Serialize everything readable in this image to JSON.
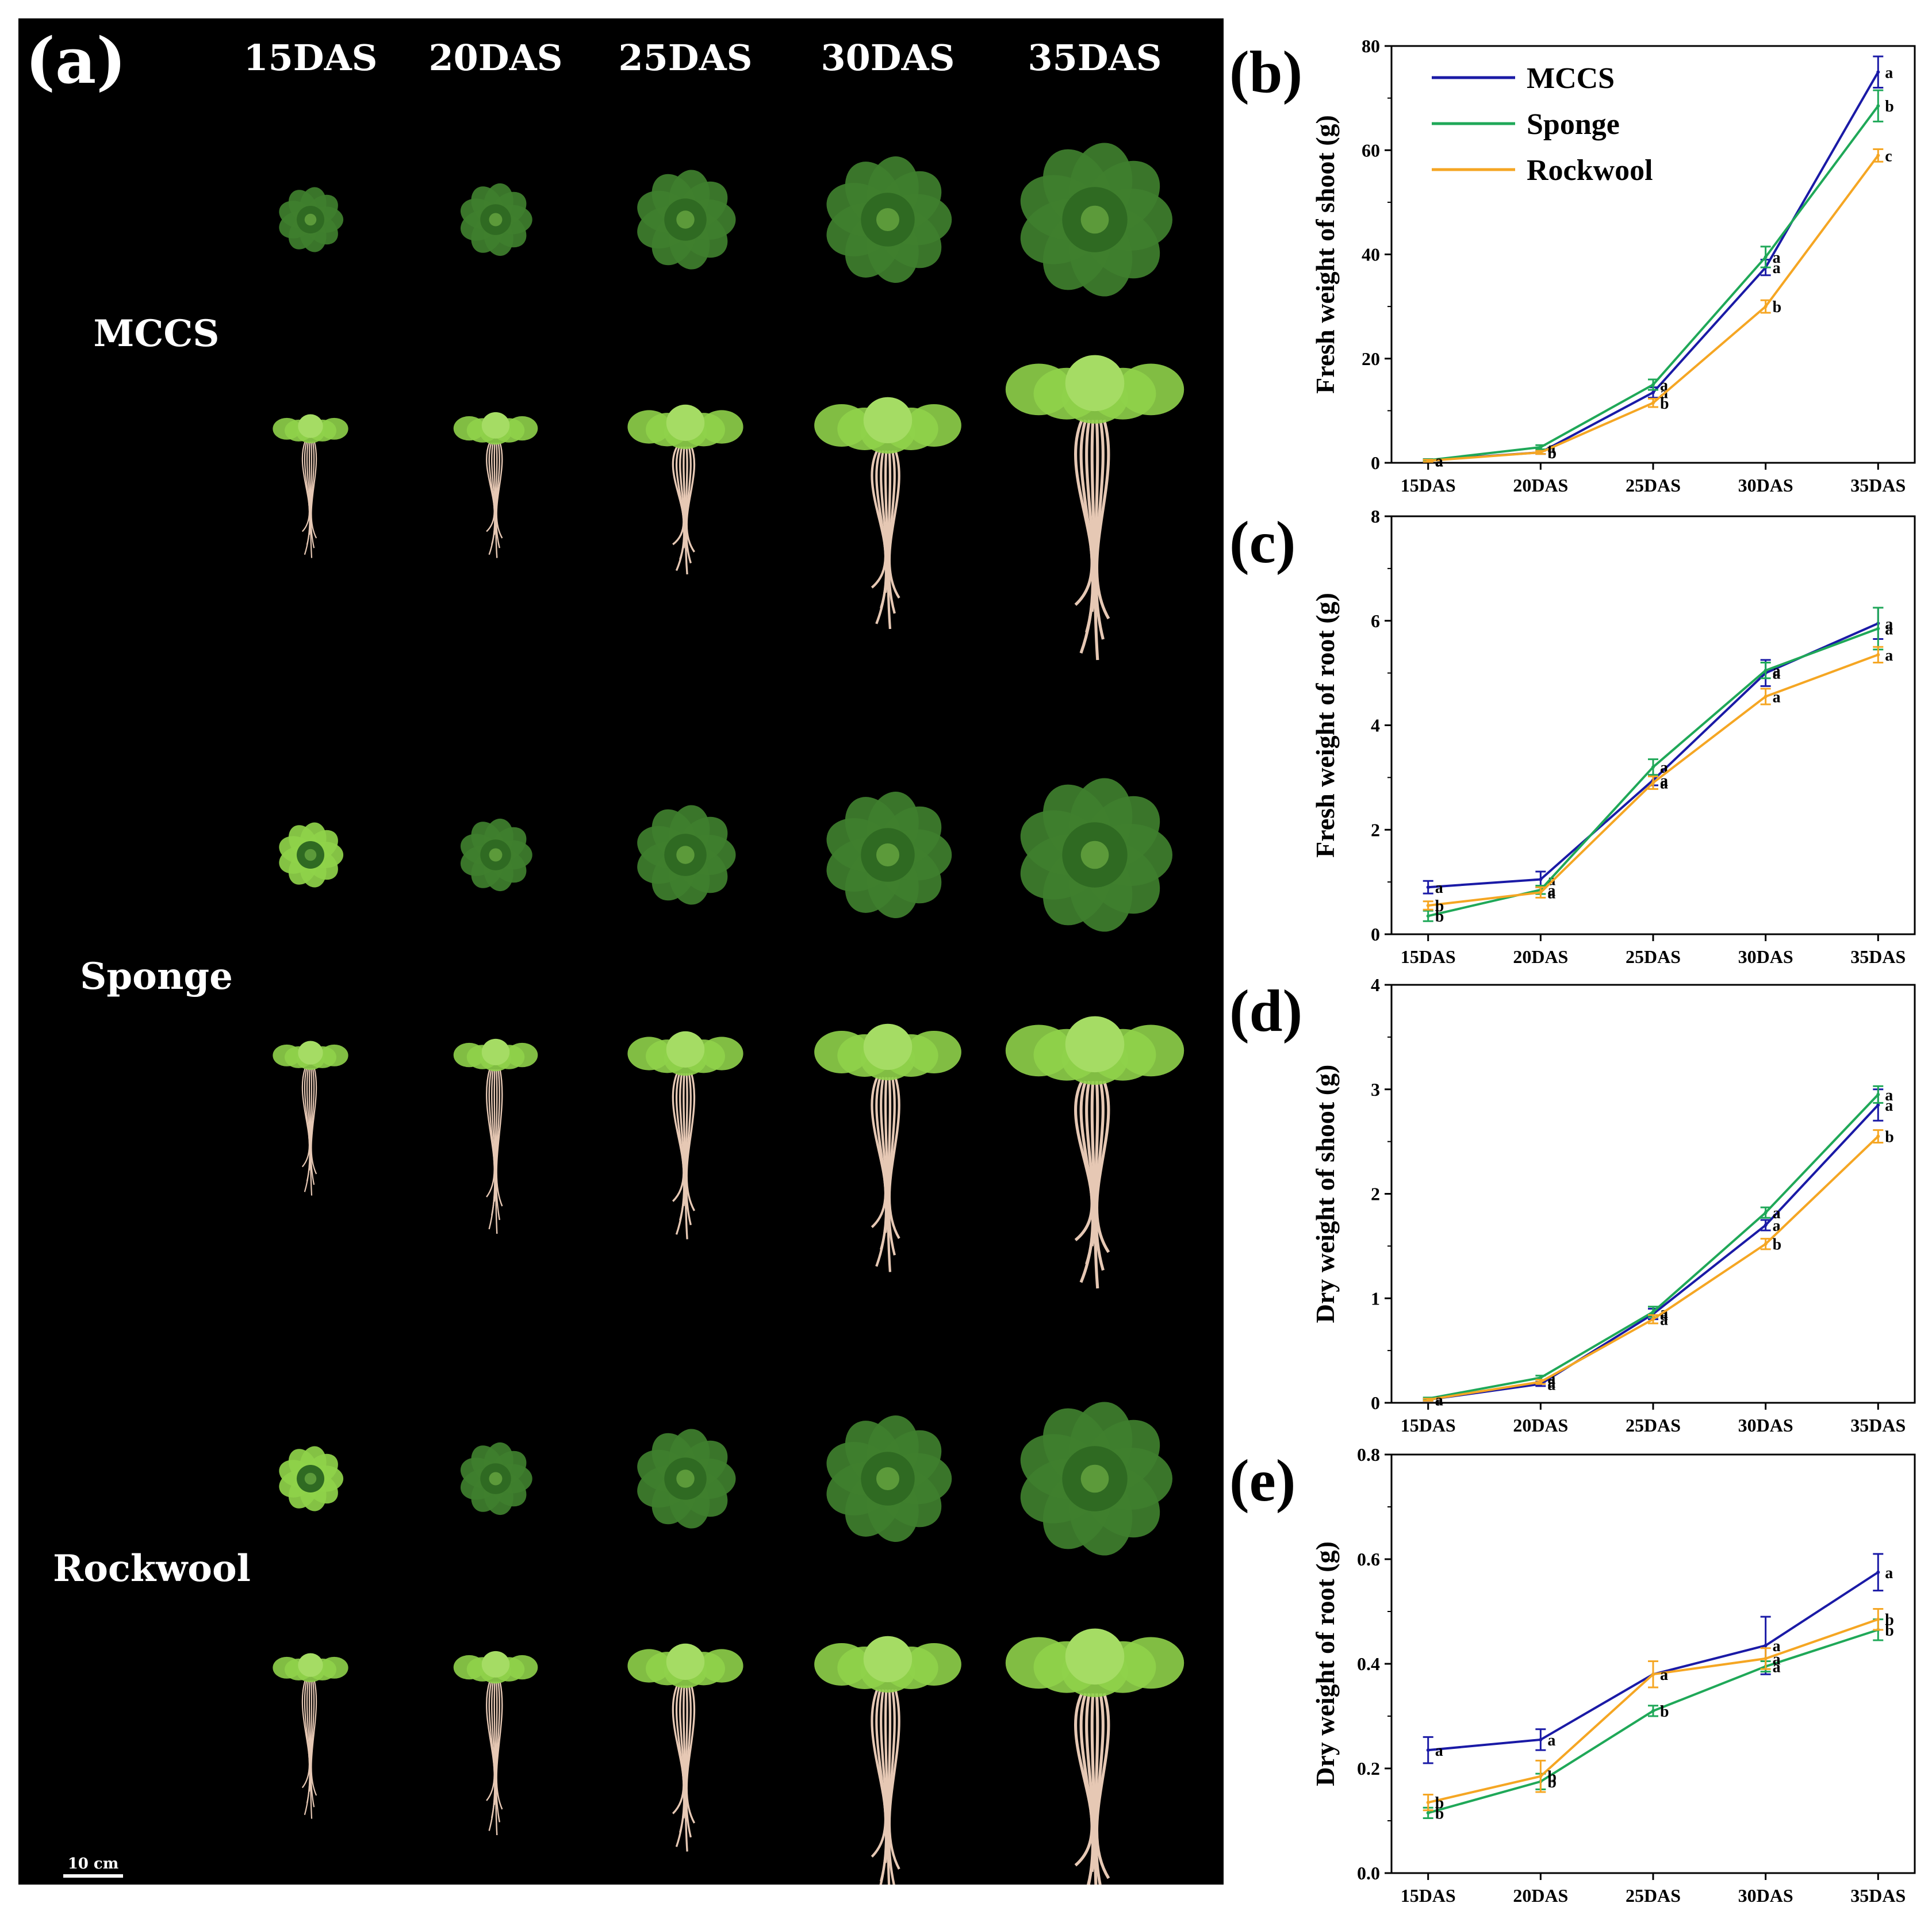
{
  "photo_panel": {
    "letter": "(a)",
    "columns": [
      "15DAS",
      "20DAS",
      "25DAS",
      "30DAS",
      "35DAS"
    ],
    "rows": [
      "MCCS",
      "Sponge",
      "Rockwool"
    ],
    "scale_bar": "10 cm"
  },
  "colors": {
    "MCCS": "#1a1aa6",
    "Sponge": "#1fa858",
    "Rockwool": "#f5a623",
    "photo_bg": "#000000",
    "leaf_dark": "#3f7f2e",
    "leaf_light": "#8fd24a",
    "root": "#e6c8b4"
  },
  "chart_data": [
    {
      "panel": "(b)",
      "type": "line",
      "ylabel": "Fresh weight of shoot (g)",
      "categories": [
        "15DAS",
        "20DAS",
        "25DAS",
        "30DAS",
        "35DAS"
      ],
      "ylim": [
        0,
        80
      ],
      "yticks": [
        "0",
        "20",
        "40",
        "60",
        "80"
      ],
      "legend": [
        "MCCS",
        "Sponge",
        "Rockwool"
      ],
      "legend_position": "top-left",
      "series": [
        {
          "name": "MCCS",
          "values": [
            0.5,
            2.0,
            13.5,
            37.5,
            75.0
          ],
          "errors": [
            0.2,
            0.3,
            1.0,
            1.5,
            3.0
          ],
          "letters": [
            "a",
            "b",
            "a",
            "a",
            "a"
          ]
        },
        {
          "name": "Sponge",
          "values": [
            0.5,
            3.0,
            15.0,
            39.5,
            68.5
          ],
          "errors": [
            0.2,
            0.4,
            1.0,
            2.0,
            3.0
          ],
          "letters": [
            "a",
            "a",
            "a",
            "a",
            "b"
          ]
        },
        {
          "name": "Rockwool",
          "values": [
            0.4,
            2.0,
            11.5,
            30.0,
            59.0
          ],
          "errors": [
            0.2,
            0.3,
            0.8,
            1.2,
            1.2
          ],
          "letters": [
            "a",
            "b",
            "b",
            "b",
            "c"
          ]
        }
      ]
    },
    {
      "panel": "(c)",
      "type": "line",
      "ylabel": "Fresh weight of root (g)",
      "categories": [
        "15DAS",
        "20DAS",
        "25DAS",
        "30DAS",
        "35DAS"
      ],
      "ylim": [
        0,
        8
      ],
      "yticks": [
        "0",
        "2",
        "4",
        "6",
        "8"
      ],
      "series": [
        {
          "name": "MCCS",
          "values": [
            0.9,
            1.05,
            2.95,
            5.0,
            5.95
          ],
          "errors": [
            0.12,
            0.15,
            0.1,
            0.25,
            0.3
          ],
          "letters": [
            "a",
            "a",
            "a",
            "a",
            "a"
          ]
        },
        {
          "name": "Sponge",
          "values": [
            0.35,
            0.85,
            3.2,
            5.05,
            5.85
          ],
          "errors": [
            0.1,
            0.08,
            0.15,
            0.15,
            0.4
          ],
          "letters": [
            "b",
            "a",
            "a",
            "a",
            "a"
          ]
        },
        {
          "name": "Rockwool",
          "values": [
            0.55,
            0.8,
            2.9,
            4.55,
            5.35
          ],
          "errors": [
            0.08,
            0.1,
            0.12,
            0.15,
            0.15
          ],
          "letters": [
            "b",
            "a",
            "a",
            "a",
            "a"
          ]
        }
      ]
    },
    {
      "panel": "(d)",
      "type": "line",
      "ylabel": "Dry weight of shoot (g)",
      "categories": [
        "15DAS",
        "20DAS",
        "25DAS",
        "30DAS",
        "35DAS"
      ],
      "ylim": [
        0,
        4
      ],
      "yticks": [
        "0",
        "1",
        "2",
        "3",
        "4"
      ],
      "series": [
        {
          "name": "MCCS",
          "values": [
            0.03,
            0.18,
            0.85,
            1.7,
            2.85
          ],
          "errors": [
            0.01,
            0.02,
            0.05,
            0.05,
            0.15
          ],
          "letters": [
            "a",
            "a",
            "a",
            "a",
            "a"
          ]
        },
        {
          "name": "Sponge",
          "values": [
            0.04,
            0.24,
            0.87,
            1.82,
            2.95
          ],
          "errors": [
            0.01,
            0.02,
            0.05,
            0.05,
            0.08
          ],
          "letters": [
            "a",
            "a",
            "a",
            "a",
            "a"
          ]
        },
        {
          "name": "Rockwool",
          "values": [
            0.03,
            0.2,
            0.8,
            1.52,
            2.55
          ],
          "errors": [
            0.01,
            0.02,
            0.04,
            0.05,
            0.06
          ],
          "letters": [
            "a",
            "a",
            "a",
            "b",
            "b"
          ]
        }
      ]
    },
    {
      "panel": "(e)",
      "type": "line",
      "ylabel": "Dry weight of root (g)",
      "categories": [
        "15DAS",
        "20DAS",
        "25DAS",
        "30DAS",
        "35DAS"
      ],
      "ylim": [
        0,
        0.8
      ],
      "yticks": [
        "0.0",
        "0.2",
        "0.4",
        "0.6",
        "0.8"
      ],
      "series": [
        {
          "name": "MCCS",
          "values": [
            0.235,
            0.255,
            0.38,
            0.435,
            0.575
          ],
          "errors": [
            0.025,
            0.02,
            0.025,
            0.055,
            0.035
          ],
          "letters": [
            "a",
            "a",
            "a",
            "a",
            "a"
          ]
        },
        {
          "name": "Sponge",
          "values": [
            0.115,
            0.175,
            0.31,
            0.395,
            0.465
          ],
          "errors": [
            0.01,
            0.015,
            0.01,
            0.01,
            0.02
          ],
          "letters": [
            "b",
            "b",
            "b",
            "a",
            "b"
          ]
        },
        {
          "name": "Rockwool",
          "values": [
            0.135,
            0.185,
            0.38,
            0.41,
            0.485
          ],
          "errors": [
            0.015,
            0.03,
            0.025,
            0.02,
            0.02
          ],
          "letters": [
            "b",
            "b",
            "a",
            "a",
            "b"
          ]
        }
      ]
    }
  ]
}
